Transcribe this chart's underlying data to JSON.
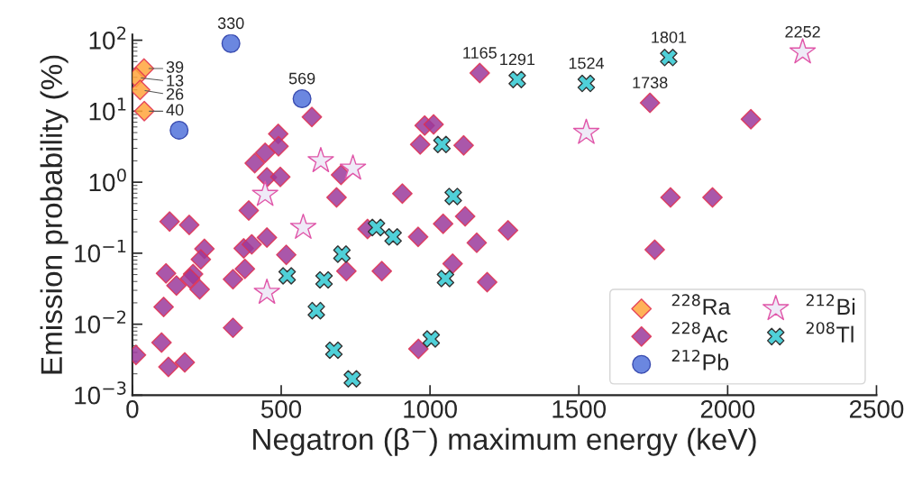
{
  "chart_data": {
    "type": "scatter",
    "xlabel": "Negatron (β$^{−}$) maximum energy (keV)",
    "ylabel": "Emission probability (%)",
    "log": "y",
    "grid": false,
    "legend": "bottom right",
    "xlim": [
      0,
      2500
    ],
    "xticks": [
      0,
      500,
      1000,
      1500,
      2000,
      2500
    ],
    "ylim": [
      0.001,
      120
    ],
    "yticks": [
      {
        "value": 0.001,
        "label": "10$^{−3}$"
      },
      {
        "value": 0.01,
        "label": "10$^{−2}$"
      },
      {
        "value": 0.1,
        "label": "10$^{−1}$"
      },
      {
        "value": 1,
        "label": "10$^{0}$"
      },
      {
        "value": 10,
        "label": "10$^{1}$"
      },
      {
        "value": 100,
        "label": "10$^{2}$"
      }
    ],
    "series": [
      {
        "name": "$^{228}$Ra",
        "color": "#ffa53c",
        "marker": "diamond",
        "x": [
          39,
          13,
          26,
          40
        ],
        "values": [
          40,
          30,
          20,
          10
        ]
      },
      {
        "name": "$^{228}$Ac",
        "color": "#9b3a9b",
        "marker": "diamond",
        "x": [
          603,
          982,
          1012,
          967,
          490,
          491,
          446,
          411,
          452,
          497,
          701,
          686,
          907,
          391,
          125,
          191,
          242,
          230,
          204,
          113,
          148,
          226,
          194,
          105,
          98,
          121,
          176,
          12,
          338,
          338,
          378,
          374,
          401,
          452,
          517,
          719,
          838,
          790,
          960,
          961,
          1167,
          1113,
          1044,
          1118,
          1157,
          1262,
          1076,
          1192,
          1739,
          2078,
          1808,
          1949,
          1755
        ],
        "values": [
          8.3,
          6.3,
          6.5,
          3.4,
          4.8,
          3.2,
          2.6,
          1.86,
          1.17,
          1.19,
          1.27,
          0.61,
          0.69,
          0.4,
          0.28,
          0.25,
          0.115,
          0.082,
          0.051,
          0.052,
          0.035,
          0.031,
          0.044,
          0.0175,
          0.0055,
          0.0025,
          0.0029,
          0.0037,
          0.0089,
          0.043,
          0.06,
          0.117,
          0.133,
          0.166,
          0.095,
          0.056,
          0.056,
          0.22,
          0.17,
          0.0045,
          34.5,
          3.3,
          0.26,
          0.33,
          0.14,
          0.21,
          0.071,
          0.039,
          13.1,
          7.7,
          0.61,
          0.61,
          0.112
        ]
      },
      {
        "name": "$^{212}$Pb",
        "color": "#6b87e0",
        "marker": "circle",
        "x": [
          157,
          331,
          570
        ],
        "values": [
          5.4,
          90,
          15
        ]
      },
      {
        "name": "$^{212}$Bi",
        "color": "#efeaf7",
        "marker": "star",
        "x": [
          446,
          633,
          741,
          574,
          452,
          1525,
          2252
        ],
        "values": [
          0.67,
          2.0,
          1.57,
          0.23,
          0.028,
          5.0,
          68
        ]
      },
      {
        "name": "$^{208}$Tl",
        "color": "#4fd0d8",
        "marker": "cross",
        "x": [
          520,
          644,
          618,
          704,
          677,
          739,
          820,
          876,
          1004,
          1040,
          1078,
          1052,
          1293,
          1525,
          1802
        ],
        "values": [
          0.048,
          0.042,
          0.0155,
          0.097,
          0.0043,
          0.0017,
          0.23,
          0.17,
          0.0062,
          3.4,
          0.63,
          0.044,
          27.9,
          24.6,
          57
        ]
      }
    ],
    "annotations": [
      {
        "text": "39",
        "x": 39,
        "y": 40
      },
      {
        "text": "13",
        "x": 13,
        "y": 30
      },
      {
        "text": "26",
        "x": 26,
        "y": 20
      },
      {
        "text": "40",
        "x": 40,
        "y": 10
      },
      {
        "text": "330",
        "x": 331,
        "y": 90
      },
      {
        "text": "569",
        "x": 570,
        "y": 15
      },
      {
        "text": "1165",
        "x": 1167,
        "y": 34.5
      },
      {
        "text": "1291",
        "x": 1293,
        "y": 27.9
      },
      {
        "text": "1524",
        "x": 1525,
        "y": 24.6
      },
      {
        "text": "1801",
        "x": 1802,
        "y": 57
      },
      {
        "text": "1738",
        "x": 1739,
        "y": 13.1
      },
      {
        "text": "2252",
        "x": 2252,
        "y": 68
      }
    ]
  }
}
